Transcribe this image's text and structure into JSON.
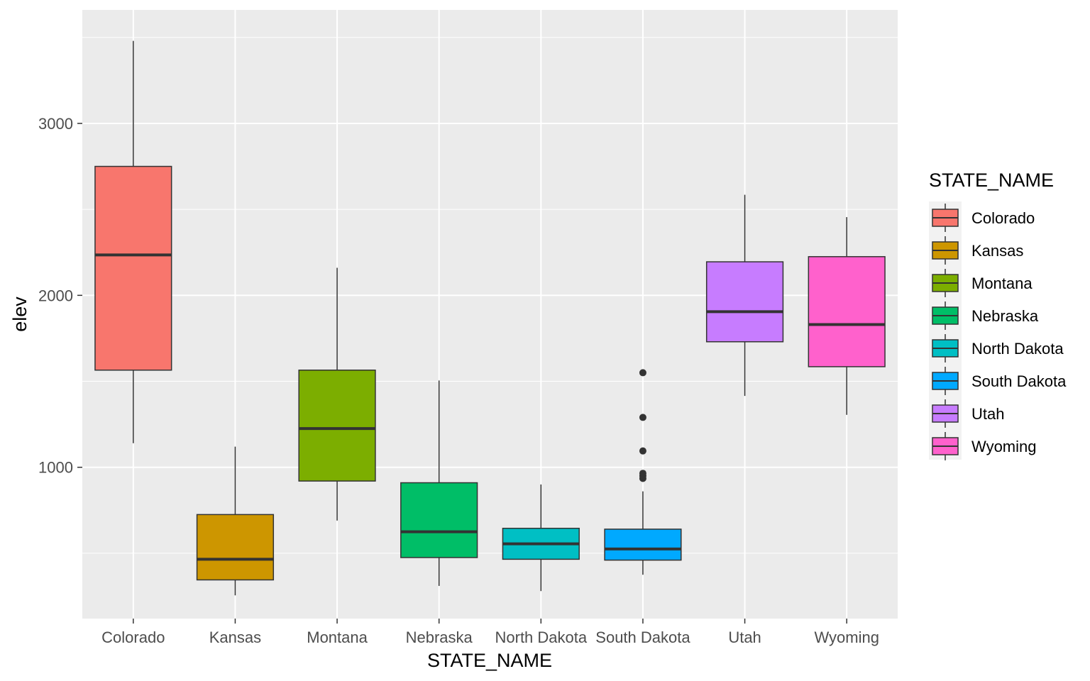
{
  "chart_data": {
    "type": "boxplot",
    "xlabel": "STATE_NAME",
    "ylabel": "elev",
    "ylim": [
      120,
      3660
    ],
    "yticks": [
      1000,
      2000,
      3000
    ],
    "ytick_labels": [
      "1000",
      "2000",
      "3000"
    ],
    "grid": true,
    "legend": {
      "title": "STATE_NAME",
      "position": "right"
    },
    "categories": [
      "Colorado",
      "Kansas",
      "Montana",
      "Nebraska",
      "North Dakota",
      "South Dakota",
      "Utah",
      "Wyoming"
    ],
    "boxes": [
      {
        "name": "Colorado",
        "color": "#F8766D",
        "min": 1140,
        "q1": 1565,
        "median": 2235,
        "q3": 2750,
        "max": 3480,
        "outliers": []
      },
      {
        "name": "Kansas",
        "color": "#CD9600",
        "min": 255,
        "q1": 345,
        "median": 465,
        "q3": 725,
        "max": 1120,
        "outliers": []
      },
      {
        "name": "Montana",
        "color": "#7CAE00",
        "min": 690,
        "q1": 920,
        "median": 1225,
        "q3": 1565,
        "max": 2160,
        "outliers": []
      },
      {
        "name": "Nebraska",
        "color": "#00BE67",
        "min": 310,
        "q1": 475,
        "median": 625,
        "q3": 910,
        "max": 1505,
        "outliers": []
      },
      {
        "name": "North Dakota",
        "color": "#00BFC4",
        "min": 280,
        "q1": 465,
        "median": 555,
        "q3": 645,
        "max": 900,
        "outliers": []
      },
      {
        "name": "South Dakota",
        "color": "#00A9FF",
        "min": 375,
        "q1": 460,
        "median": 525,
        "q3": 640,
        "max": 860,
        "outliers": [
          935,
          950,
          965,
          1095,
          1290,
          1550
        ]
      },
      {
        "name": "Utah",
        "color": "#C77CFF",
        "min": 1415,
        "q1": 1730,
        "median": 1905,
        "q3": 2195,
        "max": 2585,
        "outliers": []
      },
      {
        "name": "Wyoming",
        "color": "#FF61CC",
        "min": 1305,
        "q1": 1585,
        "median": 1830,
        "q3": 2225,
        "max": 2455,
        "outliers": []
      }
    ]
  }
}
